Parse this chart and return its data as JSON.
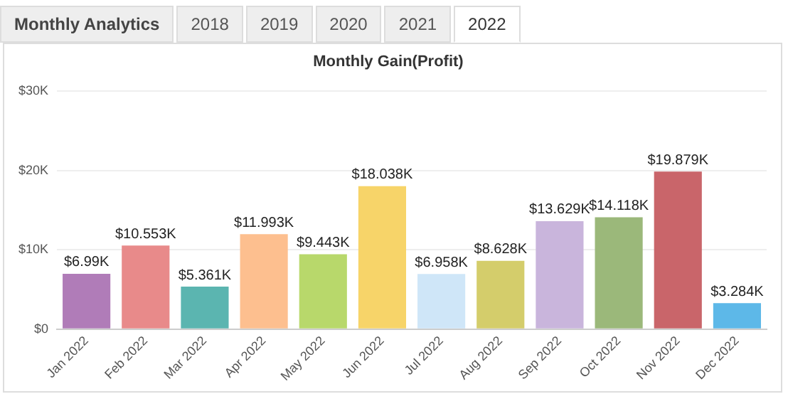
{
  "chart_data": {
    "type": "bar",
    "title": "Monthly Gain(Profit)",
    "annotations": [
      "Monthly Analytics",
      "2018",
      "2019",
      "2020",
      "2021",
      "2022"
    ],
    "categories": [
      "Jan 2022",
      "Feb 2022",
      "Mar 2022",
      "Apr 2022",
      "May 2022",
      "Jun 2022",
      "Jul 2022",
      "Aug 2022",
      "Sep 2022",
      "Oct 2022",
      "Nov 2022",
      "Dec 2022"
    ],
    "values": [
      6.99,
      10.553,
      5.361,
      11.993,
      9.443,
      18.038,
      6.958,
      8.628,
      13.629,
      14.118,
      19.879,
      3.284
    ],
    "value_labels": [
      "$6.99K",
      "$10.553K",
      "$5.361K",
      "$11.993K",
      "$9.443K",
      "$18.038K",
      "$6.958K",
      "$8.628K",
      "$13.629K",
      "$14.118K",
      "$19.879K",
      "$3.284K"
    ],
    "colors": [
      "#b07cb8",
      "#e88a8a",
      "#5bb5b0",
      "#fdbf8f",
      "#b8d86b",
      "#f7d469",
      "#cfe6f8",
      "#d4cd6b",
      "#c9b5dc",
      "#9bb87a",
      "#c9656a",
      "#5db8e8"
    ],
    "ylim": [
      0,
      30
    ],
    "yticks": [
      {
        "value": 0,
        "label": "$0"
      },
      {
        "value": 10,
        "label": "$10K"
      },
      {
        "value": 20,
        "label": "$20K"
      },
      {
        "value": 30,
        "label": "$30K"
      }
    ],
    "grid": "y",
    "legend": false
  }
}
